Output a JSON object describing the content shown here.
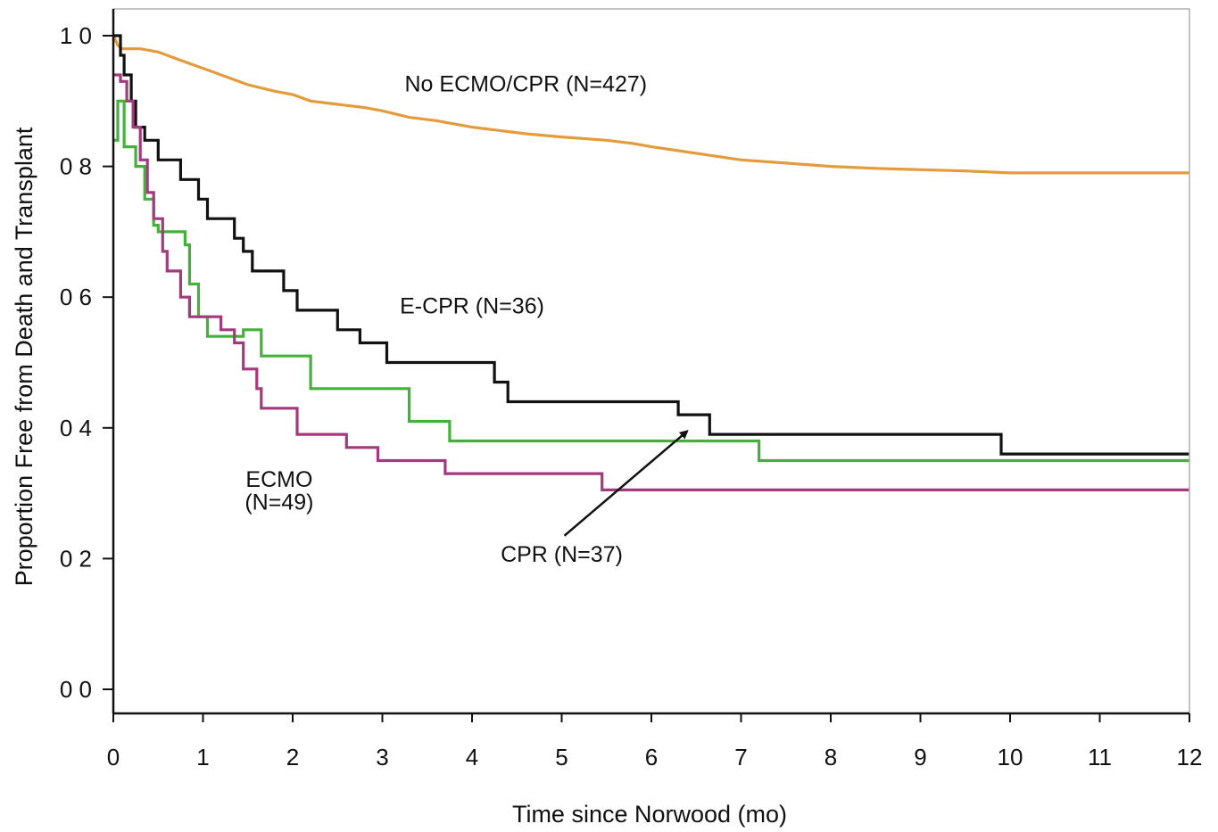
{
  "chart_data": {
    "type": "line",
    "title": "",
    "xlabel": "Time since Norwood (mo)",
    "ylabel": "Proportion Free from Death and Transplant",
    "xlim": [
      0,
      12
    ],
    "ylim": [
      0,
      1.0
    ],
    "x_ticks": [
      0,
      1,
      2,
      3,
      4,
      5,
      6,
      7,
      8,
      9,
      10,
      11,
      12
    ],
    "x_tick_labels": [
      "0",
      "1",
      "2",
      "3",
      "4",
      "5",
      "6",
      "7",
      "8",
      "9",
      "10",
      "11",
      "12"
    ],
    "y_ticks": [
      0,
      0.2,
      0.4,
      0.6,
      0.8,
      1.0
    ],
    "y_tick_labels": [
      "0 0",
      "0 2",
      "0 4",
      "0 6",
      "0 8",
      "1 0"
    ],
    "grid": false,
    "series": [
      {
        "name": "No ECMO/CPR (N=427)",
        "color": "#e39b3c",
        "step": false,
        "points": [
          [
            0,
            1.0
          ],
          [
            0.05,
            0.985
          ],
          [
            0.1,
            0.98
          ],
          [
            0.3,
            0.98
          ],
          [
            0.5,
            0.975
          ],
          [
            0.7,
            0.965
          ],
          [
            0.9,
            0.955
          ],
          [
            1.1,
            0.945
          ],
          [
            1.3,
            0.935
          ],
          [
            1.5,
            0.925
          ],
          [
            1.8,
            0.915
          ],
          [
            2.0,
            0.91
          ],
          [
            2.2,
            0.9
          ],
          [
            2.5,
            0.895
          ],
          [
            2.8,
            0.89
          ],
          [
            3.0,
            0.885
          ],
          [
            3.3,
            0.875
          ],
          [
            3.6,
            0.87
          ],
          [
            4.0,
            0.86
          ],
          [
            4.3,
            0.855
          ],
          [
            4.6,
            0.85
          ],
          [
            5.0,
            0.845
          ],
          [
            5.5,
            0.84
          ],
          [
            5.8,
            0.835
          ],
          [
            6.0,
            0.83
          ],
          [
            6.5,
            0.82
          ],
          [
            7.0,
            0.81
          ],
          [
            7.5,
            0.805
          ],
          [
            8.0,
            0.8
          ],
          [
            8.5,
            0.797
          ],
          [
            9.0,
            0.795
          ],
          [
            9.5,
            0.793
          ],
          [
            10.0,
            0.79
          ],
          [
            11.0,
            0.79
          ],
          [
            12.0,
            0.79
          ]
        ]
      },
      {
        "name": "E-CPR (N=36)",
        "color": "#111111",
        "step": true,
        "points": [
          [
            0,
            1.0
          ],
          [
            0.08,
            0.97
          ],
          [
            0.12,
            0.94
          ],
          [
            0.2,
            0.9
          ],
          [
            0.25,
            0.86
          ],
          [
            0.35,
            0.84
          ],
          [
            0.5,
            0.81
          ],
          [
            0.75,
            0.78
          ],
          [
            0.95,
            0.75
          ],
          [
            1.05,
            0.72
          ],
          [
            1.35,
            0.69
          ],
          [
            1.45,
            0.67
          ],
          [
            1.55,
            0.64
          ],
          [
            1.9,
            0.61
          ],
          [
            2.05,
            0.58
          ],
          [
            2.5,
            0.55
          ],
          [
            2.75,
            0.53
          ],
          [
            3.05,
            0.5
          ],
          [
            4.25,
            0.47
          ],
          [
            4.4,
            0.44
          ],
          [
            6.3,
            0.42
          ],
          [
            6.65,
            0.39
          ],
          [
            9.9,
            0.36
          ],
          [
            12.0,
            0.36
          ]
        ]
      },
      {
        "name": "CPR (N=37)",
        "color": "#44b13a",
        "step": true,
        "points": [
          [
            0,
            0.84
          ],
          [
            0.05,
            0.9
          ],
          [
            0.12,
            0.83
          ],
          [
            0.25,
            0.8
          ],
          [
            0.35,
            0.75
          ],
          [
            0.45,
            0.71
          ],
          [
            0.5,
            0.7
          ],
          [
            0.8,
            0.68
          ],
          [
            0.85,
            0.62
          ],
          [
            0.95,
            0.57
          ],
          [
            1.05,
            0.54
          ],
          [
            1.45,
            0.55
          ],
          [
            1.65,
            0.51
          ],
          [
            2.2,
            0.46
          ],
          [
            3.3,
            0.41
          ],
          [
            3.75,
            0.38
          ],
          [
            7.2,
            0.35
          ],
          [
            12.0,
            0.35
          ]
        ]
      },
      {
        "name": "ECMO (N=49)",
        "color": "#a33a7e",
        "step": true,
        "points": [
          [
            0,
            0.94
          ],
          [
            0.08,
            0.93
          ],
          [
            0.15,
            0.9
          ],
          [
            0.22,
            0.86
          ],
          [
            0.3,
            0.81
          ],
          [
            0.38,
            0.76
          ],
          [
            0.45,
            0.72
          ],
          [
            0.55,
            0.67
          ],
          [
            0.6,
            0.64
          ],
          [
            0.75,
            0.6
          ],
          [
            0.85,
            0.57
          ],
          [
            1.2,
            0.55
          ],
          [
            1.35,
            0.53
          ],
          [
            1.45,
            0.49
          ],
          [
            1.6,
            0.46
          ],
          [
            1.65,
            0.43
          ],
          [
            2.05,
            0.39
          ],
          [
            2.6,
            0.37
          ],
          [
            2.95,
            0.35
          ],
          [
            3.7,
            0.33
          ],
          [
            5.45,
            0.305
          ],
          [
            12.0,
            0.305
          ]
        ]
      }
    ],
    "annotations": [
      {
        "text": "No ECMO/CPR (N=427)",
        "x": 4.6,
        "y": 0.915
      },
      {
        "text": "E-CPR (N=36)",
        "x": 4.0,
        "y": 0.575
      },
      {
        "text": "ECMO",
        "x": 1.85,
        "y": 0.31
      },
      {
        "text": "(N=49)",
        "x": 1.85,
        "y": 0.275
      },
      {
        "text": "CPR (N=37)",
        "x": 5.0,
        "y": 0.195
      }
    ],
    "arrow": {
      "from": [
        5.03,
        0.235
      ],
      "to": [
        6.4,
        0.395
      ]
    }
  }
}
